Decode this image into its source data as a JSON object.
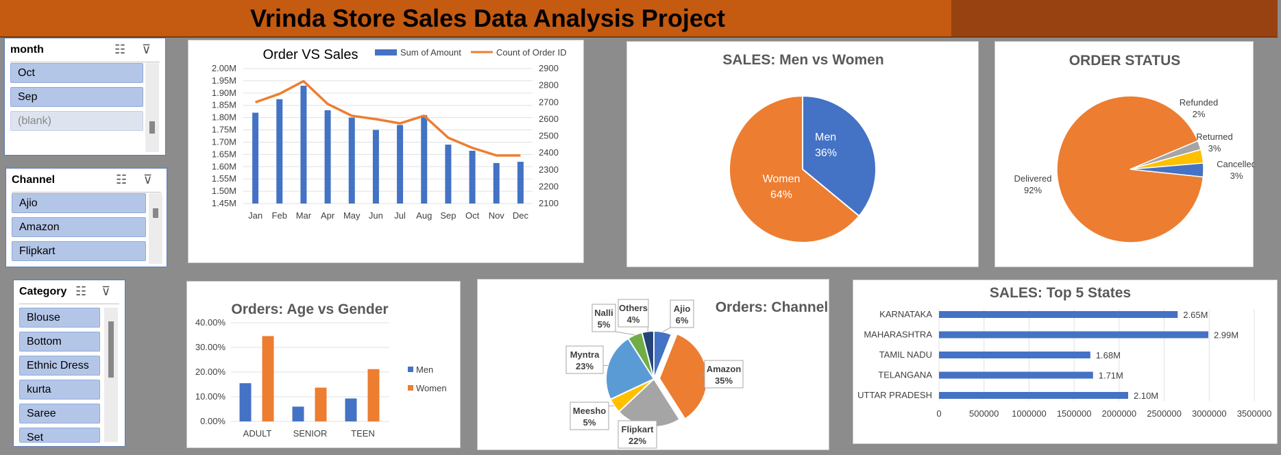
{
  "title": "Vrinda Store Sales Data Analysis Project",
  "slicers": {
    "month": {
      "header": "month",
      "items": [
        "Oct",
        "Sep",
        "(blank)"
      ]
    },
    "channel": {
      "header": "Channel",
      "items": [
        "Ajio",
        "Amazon",
        "Flipkart"
      ]
    },
    "category": {
      "header": "Category",
      "items": [
        "Blouse",
        "Bottom",
        "Ethnic Dress",
        "kurta",
        "Saree",
        "Set"
      ]
    }
  },
  "icons": [
    "multi-select-icon",
    "clear-filter-icon"
  ],
  "colors": {
    "blue": "#4472c4",
    "orange": "#ed7d31",
    "gray": "#a5a5a5",
    "yellow": "#ffc000",
    "lightblue": "#5b9bd5",
    "green": "#70ad47",
    "navy": "#264478"
  },
  "chart_data": [
    {
      "type": "bar",
      "title": "Order VS Sales",
      "categories": [
        "Jan",
        "Feb",
        "Mar",
        "Apr",
        "May",
        "Jun",
        "Jul",
        "Aug",
        "Sep",
        "Oct",
        "Nov",
        "Dec"
      ],
      "series": [
        {
          "name": "Sum of Amount",
          "type": "bar",
          "axis": "left",
          "values": [
            1.82,
            1.875,
            1.93,
            1.83,
            1.8,
            1.75,
            1.77,
            1.81,
            1.69,
            1.665,
            1.615,
            1.62
          ]
        },
        {
          "name": "Count of Order ID",
          "type": "line",
          "axis": "right",
          "values": [
            2700,
            2750,
            2825,
            2690,
            2620,
            2600,
            2575,
            2620,
            2490,
            2430,
            2385,
            2385
          ]
        }
      ],
      "left_axis": {
        "min": 1.45,
        "max": 2.0,
        "step": 0.05,
        "ticks": [
          "1.45M",
          "1.50M",
          "1.55M",
          "1.60M",
          "1.65M",
          "1.70M",
          "1.75M",
          "1.80M",
          "1.85M",
          "1.90M",
          "1.95M",
          "2.00M"
        ]
      },
      "right_axis": {
        "min": 2100,
        "max": 2900,
        "step": 100,
        "ticks": [
          "2100",
          "2200",
          "2300",
          "2400",
          "2500",
          "2600",
          "2700",
          "2800",
          "2900"
        ]
      },
      "legend": "top"
    },
    {
      "type": "pie",
      "title": "SALES: Men vs Women",
      "slices": [
        {
          "label": "Men",
          "value": 36,
          "text": "36%"
        },
        {
          "label": "Women",
          "value": 64,
          "text": "64%"
        }
      ]
    },
    {
      "type": "pie",
      "title": "ORDER STATUS",
      "slices": [
        {
          "label": "Cancelled",
          "value": 3,
          "text": "3%"
        },
        {
          "label": "Delivered",
          "value": 92,
          "text": "92%"
        },
        {
          "label": "Refunded",
          "value": 2,
          "text": "2%"
        },
        {
          "label": "Returned",
          "value": 3,
          "text": "3%"
        }
      ]
    },
    {
      "type": "bar",
      "title": "Orders: Age vs Gender",
      "categories": [
        "ADULT",
        "SENIOR",
        "TEEN"
      ],
      "series": [
        {
          "name": "Men",
          "values": [
            15.5,
            6.0,
            9.3
          ]
        },
        {
          "name": "Women",
          "values": [
            34.6,
            13.7,
            21.2
          ]
        }
      ],
      "ylim": [
        0,
        40
      ],
      "yticks": [
        "0.00%",
        "10.00%",
        "20.00%",
        "30.00%",
        "40.00%"
      ],
      "legend": "right"
    },
    {
      "type": "pie",
      "title": "Orders: Channel",
      "slices": [
        {
          "label": "Ajio",
          "value": 6,
          "text": "6%"
        },
        {
          "label": "Amazon",
          "value": 35,
          "text": "35%"
        },
        {
          "label": "Flipkart",
          "value": 22,
          "text": "22%"
        },
        {
          "label": "Meesho",
          "value": 5,
          "text": "5%"
        },
        {
          "label": "Myntra",
          "value": 23,
          "text": "23%"
        },
        {
          "label": "Nalli",
          "value": 5,
          "text": "5%"
        },
        {
          "label": "Others",
          "value": 4,
          "text": "4%"
        }
      ]
    },
    {
      "type": "bar",
      "orientation": "horizontal",
      "title": "SALES: Top 5 States",
      "categories": [
        "KARNATAKA",
        "MAHARASHTRA",
        "TAMIL NADU",
        "TELANGANA",
        "UTTAR PRADESH"
      ],
      "values": [
        2650000,
        2990000,
        1680000,
        1710000,
        2100000
      ],
      "value_labels": [
        "2.65M",
        "2.99M",
        "1.68M",
        "1.71M",
        "2.10M"
      ],
      "xlim": [
        0,
        3500000
      ],
      "xticks": [
        "0",
        "500000",
        "1000000",
        "1500000",
        "2000000",
        "2500000",
        "3000000",
        "3500000"
      ]
    }
  ]
}
